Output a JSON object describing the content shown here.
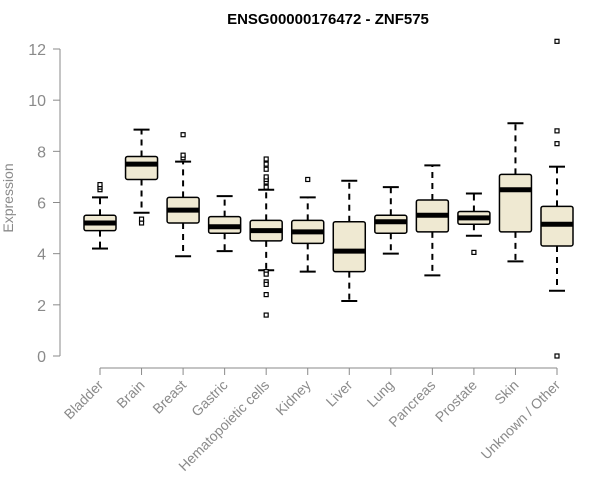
{
  "colors": {
    "box_fill": "#efe9d2",
    "box_stroke": "#000000",
    "axis": "#8a8a8a",
    "text": "#8a8a8a",
    "title": "#000000"
  },
  "chart_data": {
    "type": "box",
    "title": "ENSG00000176472 - ZNF575",
    "xlabel": "",
    "ylabel": "Expression",
    "ylim": [
      0,
      12
    ],
    "yticks": [
      0,
      2,
      4,
      6,
      8,
      10,
      12
    ],
    "grid": false,
    "categories": [
      "Bladder",
      "Brain",
      "Breast",
      "Gastric",
      "Hematopoietic cells",
      "Kidney",
      "Liver",
      "Lung",
      "Pancreas",
      "Prostate",
      "Skin",
      "Unknown / Other"
    ],
    "boxes": [
      {
        "category": "Bladder",
        "whisker_low": 4.2,
        "q1": 4.9,
        "median": 5.2,
        "q3": 5.5,
        "whisker_high": 6.2,
        "outliers": [
          6.5,
          6.6,
          6.7
        ]
      },
      {
        "category": "Brain",
        "whisker_low": 5.6,
        "q1": 6.9,
        "median": 7.5,
        "q3": 7.8,
        "whisker_high": 8.85,
        "outliers": [
          5.2,
          5.35
        ]
      },
      {
        "category": "Breast",
        "whisker_low": 3.9,
        "q1": 5.2,
        "median": 5.7,
        "q3": 6.2,
        "whisker_high": 7.6,
        "outliers": [
          7.75,
          7.85,
          8.65
        ]
      },
      {
        "category": "Gastric",
        "whisker_low": 4.1,
        "q1": 4.8,
        "median": 5.05,
        "q3": 5.45,
        "whisker_high": 6.25,
        "outliers": []
      },
      {
        "category": "Hematopoietic cells",
        "whisker_low": 3.35,
        "q1": 4.5,
        "median": 4.9,
        "q3": 5.3,
        "whisker_high": 6.5,
        "outliers": [
          6.6,
          6.8,
          6.9,
          7.0,
          7.3,
          7.5,
          7.7,
          3.3,
          3.2,
          2.9,
          2.8,
          2.4,
          1.6
        ]
      },
      {
        "category": "Kidney",
        "whisker_low": 3.3,
        "q1": 4.4,
        "median": 4.85,
        "q3": 5.3,
        "whisker_high": 6.2,
        "outliers": [
          6.9
        ]
      },
      {
        "category": "Liver",
        "whisker_low": 2.15,
        "q1": 3.3,
        "median": 4.1,
        "q3": 5.25,
        "whisker_high": 6.85,
        "outliers": []
      },
      {
        "category": "Lung",
        "whisker_low": 4.0,
        "q1": 4.8,
        "median": 5.25,
        "q3": 5.5,
        "whisker_high": 6.6,
        "outliers": []
      },
      {
        "category": "Pancreas",
        "whisker_low": 3.15,
        "q1": 4.85,
        "median": 5.5,
        "q3": 6.1,
        "whisker_high": 7.45,
        "outliers": []
      },
      {
        "category": "Prostate",
        "whisker_low": 4.7,
        "q1": 5.15,
        "median": 5.4,
        "q3": 5.65,
        "whisker_high": 6.35,
        "outliers": [
          4.05
        ]
      },
      {
        "category": "Skin",
        "whisker_low": 3.7,
        "q1": 4.85,
        "median": 6.5,
        "q3": 7.1,
        "whisker_high": 9.1,
        "outliers": []
      },
      {
        "category": "Unknown / Other",
        "whisker_low": 2.55,
        "q1": 4.3,
        "median": 5.15,
        "q3": 5.85,
        "whisker_high": 7.4,
        "outliers": [
          8.3,
          8.8,
          12.3,
          0.0
        ]
      }
    ]
  }
}
